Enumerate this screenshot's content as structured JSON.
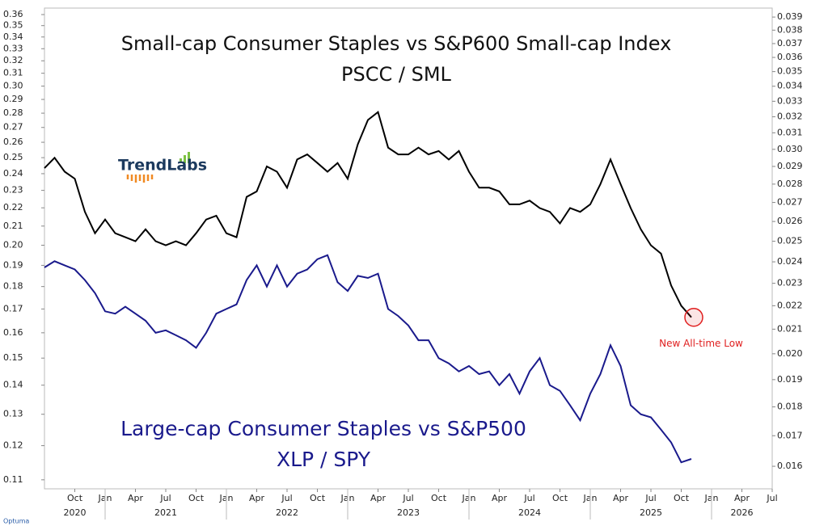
{
  "chart_data": {
    "type": "line",
    "title": "Small-cap Consumer Staples vs S&P600 Small-cap Index",
    "annotations": [
      "Large-cap Consumer Staples vs S&P500",
      "New All-time Low"
    ],
    "logo": "TrendLabs",
    "footer": "Optuma",
    "x": [
      "2020-07",
      "2020-08",
      "2020-09",
      "2020-10",
      "2020-11",
      "2020-12",
      "2021-01",
      "2021-02",
      "2021-03",
      "2021-04",
      "2021-05",
      "2021-06",
      "2021-07",
      "2021-08",
      "2021-09",
      "2021-10",
      "2021-11",
      "2021-12",
      "2022-01",
      "2022-02",
      "2022-03",
      "2022-04",
      "2022-05",
      "2022-06",
      "2022-07",
      "2022-08",
      "2022-09",
      "2022-10",
      "2022-11",
      "2022-12",
      "2023-01",
      "2023-02",
      "2023-03",
      "2023-04",
      "2023-05",
      "2023-06",
      "2023-07",
      "2023-08",
      "2023-09",
      "2023-10",
      "2023-11",
      "2023-12",
      "2024-01",
      "2024-02",
      "2024-03",
      "2024-04",
      "2024-05",
      "2024-06",
      "2024-07",
      "2024-08",
      "2024-09",
      "2024-10",
      "2024-11",
      "2024-12",
      "2025-01",
      "2025-02",
      "2025-03",
      "2025-04",
      "2025-05",
      "2025-06",
      "2025-07",
      "2025-08",
      "2025-09",
      "2025-10",
      "2025-11"
    ],
    "series": [
      {
        "name": "PSCC / SML",
        "color": "#000000",
        "axis": "y2",
        "values": [
          0.0289,
          0.0295,
          0.0287,
          0.0283,
          0.0265,
          0.0254,
          0.0261,
          0.0254,
          0.0252,
          0.025,
          0.0256,
          0.025,
          0.0248,
          0.025,
          0.0248,
          0.0254,
          0.0261,
          0.0263,
          0.0254,
          0.0252,
          0.0273,
          0.0276,
          0.029,
          0.0287,
          0.0278,
          0.0294,
          0.0297,
          0.0292,
          0.0287,
          0.0292,
          0.0283,
          0.0303,
          0.0318,
          0.0323,
          0.0301,
          0.0297,
          0.0297,
          0.0301,
          0.0297,
          0.0299,
          0.0294,
          0.0299,
          0.0287,
          0.0278,
          0.0278,
          0.0276,
          0.0269,
          0.0269,
          0.0271,
          0.0267,
          0.0265,
          0.0259,
          0.0267,
          0.0265,
          0.0269,
          0.028,
          0.0294,
          0.028,
          0.0267,
          0.0256,
          0.0248,
          0.0244,
          0.0229,
          0.022,
          0.0215
        ]
      },
      {
        "name": "XLP / SPY",
        "color": "#1a1a8c",
        "axis": "y",
        "values": [
          0.189,
          0.192,
          0.19,
          0.188,
          0.183,
          0.177,
          0.169,
          0.168,
          0.171,
          0.168,
          0.165,
          0.16,
          0.161,
          0.159,
          0.157,
          0.154,
          0.16,
          0.168,
          0.17,
          0.172,
          0.183,
          0.19,
          0.18,
          0.19,
          0.18,
          0.186,
          0.188,
          0.193,
          0.195,
          0.182,
          0.178,
          0.185,
          0.184,
          0.186,
          0.17,
          0.167,
          0.163,
          0.157,
          0.157,
          0.15,
          0.148,
          0.145,
          0.147,
          0.144,
          0.145,
          0.14,
          0.144,
          0.137,
          0.145,
          0.15,
          0.14,
          0.138,
          0.133,
          0.128,
          0.137,
          0.144,
          0.155,
          0.147,
          0.133,
          0.13,
          0.129,
          0.125,
          0.121,
          0.115,
          0.116
        ]
      }
    ],
    "xlim": [
      "2020-07",
      "2026-07"
    ],
    "xticks": [
      {
        "value": "2020-10",
        "label": "Oct"
      },
      {
        "value": "2021-01",
        "label": "Jan"
      },
      {
        "value": "2021-04",
        "label": "Apr"
      },
      {
        "value": "2021-07",
        "label": "Jul"
      },
      {
        "value": "2021-10",
        "label": "Oct"
      },
      {
        "value": "2022-01",
        "label": "Jan"
      },
      {
        "value": "2022-04",
        "label": "Apr"
      },
      {
        "value": "2022-07",
        "label": "Jul"
      },
      {
        "value": "2022-10",
        "label": "Oct"
      },
      {
        "value": "2023-01",
        "label": "Jan"
      },
      {
        "value": "2023-04",
        "label": "Apr"
      },
      {
        "value": "2023-07",
        "label": "Jul"
      },
      {
        "value": "2023-10",
        "label": "Oct"
      },
      {
        "value": "2024-01",
        "label": "Jan"
      },
      {
        "value": "2024-04",
        "label": "Apr"
      },
      {
        "value": "2024-07",
        "label": "Jul"
      },
      {
        "value": "2024-10",
        "label": "Oct"
      },
      {
        "value": "2025-01",
        "label": "Jan"
      },
      {
        "value": "2025-04",
        "label": "Apr"
      },
      {
        "value": "2025-07",
        "label": "Jul"
      },
      {
        "value": "2025-10",
        "label": "Oct"
      },
      {
        "value": "2026-01",
        "label": "Jan"
      },
      {
        "value": "2026-04",
        "label": "Apr"
      },
      {
        "value": "2026-07",
        "label": "Jul"
      }
    ],
    "years": [
      2020,
      2021,
      2022,
      2023,
      2024,
      2025,
      2026
    ],
    "log_scale": true,
    "ylim": [
      0.1075,
      0.366
    ],
    "yticks": [
      0.11,
      0.12,
      0.13,
      0.14,
      0.15,
      0.16,
      0.17,
      0.18,
      0.19,
      {
        "value": 0.2,
        "label": "0.20"
      },
      0.21,
      0.22,
      0.23,
      0.24,
      0.25,
      0.26,
      0.27,
      0.28,
      0.29,
      {
        "value": 0.3,
        "label": "0.30"
      },
      0.31,
      0.32,
      0.33,
      0.34,
      0.35,
      0.36
    ],
    "y2lim": [
      0.0153,
      0.0397
    ],
    "y2ticks": [
      0.016,
      0.017,
      0.018,
      0.019,
      {
        "value": 0.02,
        "label": "0.020"
      },
      0.021,
      0.022,
      0.023,
      0.024,
      0.025,
      0.026,
      0.027,
      0.028,
      0.029,
      {
        "value": 0.03,
        "label": "0.030"
      },
      0.031,
      0.032,
      0.033,
      0.034,
      0.035,
      0.036,
      0.037,
      0.038,
      0.039
    ],
    "highlight_color": "#e02020"
  }
}
